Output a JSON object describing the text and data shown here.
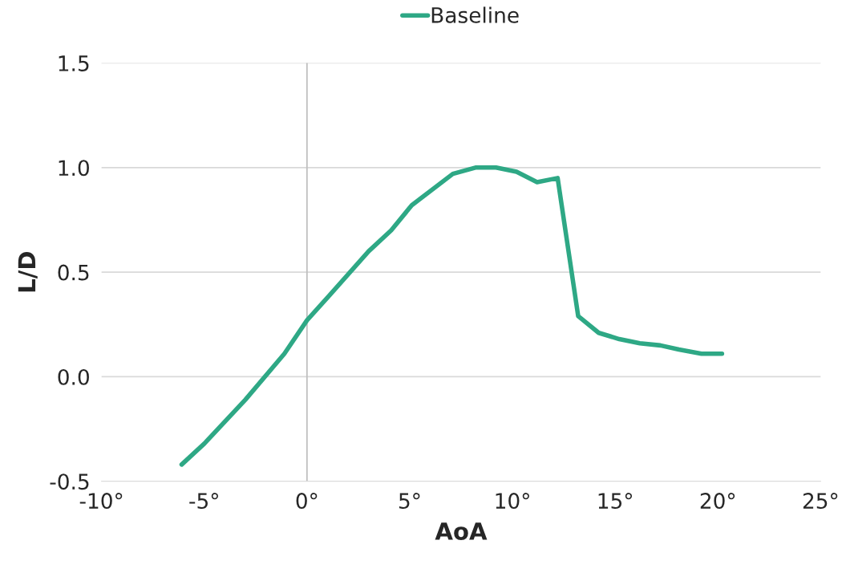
{
  "chart_data": {
    "type": "line",
    "xlabel": "AoA",
    "ylabel": "L/D",
    "legend": "top",
    "x": [
      -6.1,
      -5.0,
      -3.0,
      -1.1,
      0,
      1.1,
      3.0,
      4.1,
      5.1,
      7.1,
      8.2,
      9.2,
      10.2,
      11.2,
      12.2,
      13.2,
      14.2,
      15.2,
      16.2,
      17.2,
      18.1,
      19.2,
      20.2
    ],
    "series": [
      {
        "name": "Baseline",
        "color": "#2ea885",
        "values": [
          -0.42,
          -0.32,
          -0.11,
          0.11,
          0.27,
          0.39,
          0.6,
          0.7,
          0.82,
          0.97,
          1.0,
          1.0,
          0.98,
          0.93,
          0.95,
          0.29,
          0.21,
          0.18,
          0.16,
          0.15,
          0.13,
          0.11,
          0.11
        ]
      }
    ],
    "xlim": [
      -10,
      25
    ],
    "xticks": [
      {
        "value": -10,
        "label": "-10°"
      },
      {
        "value": -5,
        "label": "-5°"
      },
      {
        "value": 0,
        "label": "0°"
      },
      {
        "value": 5,
        "label": "5°"
      },
      {
        "value": 10,
        "label": "10°"
      },
      {
        "value": 15,
        "label": "15°"
      },
      {
        "value": 20,
        "label": "20°"
      },
      {
        "value": 25,
        "label": "25°"
      }
    ],
    "ylim": [
      -0.5,
      1.5
    ],
    "yticks": [
      -0.5,
      {
        "value": 0,
        "label": "0.0"
      },
      0.5,
      {
        "value": 1,
        "label": "1.0"
      },
      1.5
    ],
    "ref_lines": [
      {
        "axis": "x",
        "value": 0,
        "color": "#bfbfbf"
      }
    ],
    "grid": "y",
    "marker": "none",
    "line_style": "solid"
  }
}
